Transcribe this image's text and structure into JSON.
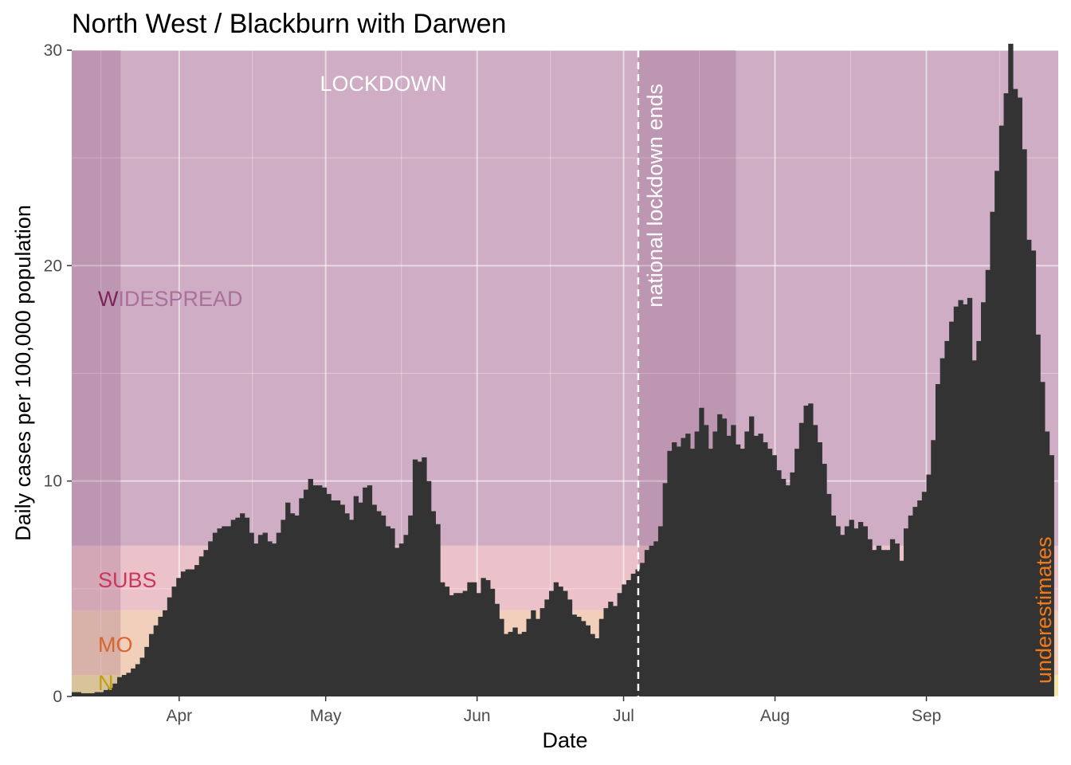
{
  "chart_data": {
    "type": "bar",
    "title": "North West / Blackburn with Darwen",
    "xlabel": "Date",
    "ylabel": "Daily cases per 100,000 population",
    "x_start": "2020-03-10",
    "x_end": "2020-09-28",
    "ylim": [
      0,
      30
    ],
    "yticks": [
      0,
      10,
      20,
      30
    ],
    "xticks": [
      {
        "date": "2020-04-01",
        "label": "Apr"
      },
      {
        "date": "2020-05-01",
        "label": "May"
      },
      {
        "date": "2020-06-01",
        "label": "Jun"
      },
      {
        "date": "2020-07-01",
        "label": "Jul"
      },
      {
        "date": "2020-08-01",
        "label": "Aug"
      },
      {
        "date": "2020-09-01",
        "label": "Sep"
      }
    ],
    "grid": true,
    "bar_color": "#333333",
    "bands": [
      {
        "label": "N",
        "ymin": 0,
        "ymax": 1,
        "color": "#e8cf5e"
      },
      {
        "label": "MO",
        "ymin": 1,
        "ymax": 4,
        "color": "#e5a882"
      },
      {
        "label": "SUBS",
        "ymin": 4,
        "ymax": 7,
        "color": "#dc8f9e"
      },
      {
        "label": "W",
        "label_faded": "IDESPREAD",
        "ymin": 7,
        "ymax": 30,
        "color": "#a86a93"
      }
    ],
    "band_text_colors": {
      "N": "#c29d14",
      "MO": "#d9652e",
      "SUBS": "#c9375b",
      "W": "#7d2358",
      "faded": "#a8709a"
    },
    "lockdown_periods": [
      {
        "start": "2020-03-10",
        "end": "2020-03-20"
      },
      {
        "start": "2020-07-04",
        "end": "2020-07-24"
      }
    ],
    "lockdown_label": "LOCKDOWN",
    "event_date": "2020-07-04",
    "event_label": "national lockdown ends",
    "underestimate_label": "underestimates",
    "underestimate_color": "#f07a1a",
    "values": [
      0.2,
      0.2,
      0.15,
      0.15,
      0.15,
      0.2,
      0.2,
      0.3,
      0.4,
      0.6,
      0.9,
      1.0,
      1.1,
      1.3,
      1.5,
      1.8,
      2.3,
      2.9,
      3.3,
      3.7,
      4.0,
      4.6,
      5.1,
      5.5,
      5.8,
      5.9,
      5.9,
      6.1,
      6.5,
      6.8,
      7.2,
      7.6,
      7.8,
      7.9,
      7.9,
      8.2,
      8.3,
      8.5,
      8.3,
      7.6,
      7.1,
      7.5,
      7.6,
      7.2,
      7.1,
      7.6,
      8.2,
      9.0,
      8.5,
      8.4,
      9.2,
      9.6,
      10.1,
      9.8,
      9.8,
      9.7,
      9.4,
      9.1,
      9.1,
      8.9,
      8.5,
      8.2,
      9.3,
      9.0,
      9.7,
      9.8,
      8.9,
      8.6,
      8.4,
      7.9,
      7.8,
      6.9,
      7.1,
      7.5,
      8.4,
      11.0,
      10.9,
      11.1,
      10.0,
      8.6,
      8.0,
      5.3,
      5.1,
      4.7,
      4.8,
      4.8,
      4.9,
      5.3,
      5.3,
      4.8,
      5.5,
      5.4,
      5.0,
      4.3,
      3.6,
      2.9,
      3.0,
      3.2,
      2.9,
      3.0,
      3.6,
      4.0,
      3.6,
      4.1,
      4.5,
      4.9,
      5.3,
      5.1,
      4.9,
      4.5,
      3.8,
      3.7,
      3.5,
      3.3,
      2.9,
      2.7,
      3.6,
      4.1,
      4.4,
      4.2,
      4.8,
      5.2,
      5.4,
      5.7,
      5.9,
      6.2,
      6.8,
      7.0,
      7.2,
      7.9,
      9.9,
      11.4,
      11.8,
      11.6,
      12.0,
      12.2,
      11.5,
      12.3,
      13.4,
      12.6,
      11.5,
      12.3,
      13.1,
      12.9,
      12.1,
      12.6,
      11.7,
      11.5,
      12.3,
      13.0,
      12.1,
      12.2,
      11.8,
      11.5,
      11.2,
      10.5,
      10.1,
      9.8,
      10.4,
      11.5,
      12.7,
      13.5,
      13.6,
      12.6,
      11.8,
      10.8,
      9.4,
      8.4,
      7.9,
      7.5,
      7.9,
      8.2,
      7.8,
      8.1,
      7.9,
      7.3,
      6.8,
      7.0,
      6.8,
      6.8,
      7.3,
      7.1,
      6.3,
      7.8,
      8.4,
      8.8,
      9.1,
      9.5,
      10.3,
      11.9,
      14.5,
      15.7,
      16.5,
      17.4,
      18.1,
      18.4,
      18.2,
      18.5,
      15.6,
      16.5,
      18.3,
      19.8,
      22.5,
      24.4,
      26.5,
      28.0,
      30.3,
      28.2,
      27.8,
      25.4,
      21.2,
      20.7,
      16.8,
      14.6,
      12.3,
      11.2,
      0
    ]
  }
}
